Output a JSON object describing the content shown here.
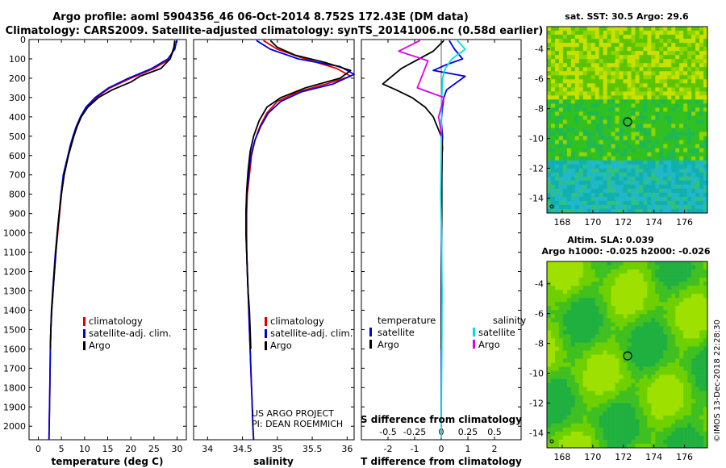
{
  "title": {
    "line1": "Argo profile: aoml 5904356_46 06-Oct-2014 8.752S 172.43E (DM data)",
    "line2": "Climatology: CARS2009. Satellite-adjusted climatology: synTS_20141006.nc (0.58d earlier)"
  },
  "colors": {
    "argo": "#000000",
    "climatology": "#e00000",
    "satellite": "#0000e0",
    "salinity_satellite": "#00e0e0",
    "salinity_argo": "#e000e0"
  },
  "depth_axis": {
    "ticks": [
      "0",
      "100",
      "200",
      "300",
      "400",
      "500",
      "600",
      "700",
      "800",
      "900",
      "1000",
      "1100",
      "1200",
      "1300",
      "1400",
      "1500",
      "1600",
      "1700",
      "1800",
      "1900",
      "2000"
    ]
  },
  "chart_data": [
    {
      "type": "line",
      "name": "temperature",
      "xlabel": "temperature (deg C)",
      "xlim": [
        -2,
        32
      ],
      "ylim": [
        2070,
        0
      ],
      "xticks": [
        "0",
        "5",
        "10",
        "15",
        "20",
        "25",
        "30"
      ],
      "legend": {
        "position": "lower-middle",
        "items": [
          "climatology",
          "satellite-adj. clim.",
          "Argo"
        ]
      },
      "series": [
        {
          "name": "climatology",
          "color_key": "climatology",
          "x": [
            29.5,
            29.3,
            28.5,
            25,
            20,
            15.5,
            12.5,
            10.5,
            9.2,
            8.3,
            7.6,
            7,
            6.5,
            6,
            5.5,
            5,
            4.6,
            4.2,
            3.8,
            3.5,
            3.2,
            2.9,
            2.7,
            2.6,
            2.5,
            2.4,
            2.3
          ],
          "y": [
            5,
            50,
            100,
            150,
            200,
            250,
            300,
            350,
            400,
            450,
            500,
            550,
            600,
            650,
            700,
            800,
            900,
            1000,
            1100,
            1200,
            1300,
            1400,
            1500,
            1600,
            1800,
            1950,
            2070
          ]
        },
        {
          "name": "satellite-adj. clim.",
          "color_key": "satellite",
          "x": [
            29.9,
            29.5,
            28,
            24.5,
            19.5,
            15.2,
            12.3,
            10.3,
            9.1,
            8.2,
            7.5,
            6.9,
            6.4,
            5.9,
            5.4,
            4.9,
            4.5,
            4.1,
            3.7,
            3.4,
            3.1,
            2.85,
            2.7,
            2.6,
            2.5,
            2.4,
            2.3
          ],
          "y": [
            5,
            50,
            100,
            150,
            200,
            250,
            300,
            350,
            400,
            450,
            500,
            550,
            600,
            650,
            700,
            800,
            900,
            1000,
            1100,
            1200,
            1300,
            1400,
            1500,
            1600,
            1800,
            1950,
            2070
          ]
        },
        {
          "name": "Argo",
          "color_key": "argo",
          "x": [
            29.5,
            29.3,
            28.5,
            26.5,
            22,
            20,
            16,
            13,
            10.7,
            9.3,
            8.4,
            7.7,
            7.1,
            6.5,
            5.6,
            5,
            4.5,
            4.1,
            3.8,
            3.5,
            3.2,
            2.9,
            2.7,
            2.6
          ],
          "y": [
            5,
            40,
            100,
            150,
            190,
            220,
            260,
            300,
            350,
            400,
            450,
            500,
            550,
            600,
            700,
            800,
            900,
            1000,
            1100,
            1200,
            1300,
            1400,
            1500,
            1600
          ]
        }
      ]
    },
    {
      "type": "line",
      "name": "salinity",
      "xlabel": "salinity",
      "xlim": [
        33.8,
        36.1
      ],
      "ylim": [
        2070,
        0
      ],
      "xticks": [
        "34",
        "34.5",
        "35",
        "35.5",
        "36"
      ],
      "legend": {
        "position": "lower-right",
        "items": [
          "climatology",
          "satellite-adj. clim.",
          "Argo"
        ]
      },
      "annotation": [
        "US ARGO PROJECT",
        "PI: DEAN ROEMMICH"
      ],
      "series": [
        {
          "name": "climatology",
          "color_key": "climatology",
          "x": [
            34.8,
            35,
            35.4,
            35.85,
            36.05,
            35.7,
            35.3,
            35,
            34.85,
            34.75,
            34.68,
            34.63,
            34.6,
            34.57,
            34.56,
            34.56,
            34.56,
            34.57,
            34.58,
            34.59,
            34.6,
            34.61,
            34.62,
            34.63,
            34.64,
            34.65,
            34.66
          ],
          "y": [
            5,
            50,
            100,
            150,
            190,
            230,
            270,
            320,
            380,
            450,
            520,
            600,
            700,
            800,
            900,
            1000,
            1100,
            1200,
            1300,
            1400,
            1500,
            1600,
            1700,
            1800,
            1900,
            2000,
            2070
          ]
        },
        {
          "name": "satellite-adj. clim.",
          "color_key": "satellite",
          "x": [
            34.7,
            34.9,
            35.3,
            35.9,
            36.1,
            35.8,
            35.35,
            35.05,
            34.87,
            34.76,
            34.68,
            34.62,
            34.59,
            34.56,
            34.55,
            34.55,
            34.56,
            34.57,
            34.58,
            34.59,
            34.6,
            34.61,
            34.62,
            34.63,
            34.64,
            34.65,
            34.66
          ],
          "y": [
            5,
            50,
            100,
            140,
            180,
            230,
            270,
            320,
            380,
            450,
            520,
            600,
            700,
            800,
            900,
            1000,
            1100,
            1200,
            1300,
            1400,
            1500,
            1600,
            1700,
            1800,
            1900,
            2000,
            2070
          ]
        },
        {
          "name": "Argo",
          "color_key": "argo",
          "x": [
            34.9,
            35,
            35.25,
            35.7,
            36.05,
            35.9,
            35.4,
            35.05,
            34.85,
            34.74,
            34.66,
            34.61,
            34.58,
            34.56,
            34.55,
            34.55,
            34.56,
            34.57,
            34.58,
            34.6,
            34.61,
            34.62
          ],
          "y": [
            5,
            40,
            80,
            120,
            160,
            200,
            250,
            300,
            350,
            420,
            500,
            580,
            680,
            780,
            900,
            1000,
            1100,
            1200,
            1300,
            1400,
            1500,
            1600
          ]
        }
      ]
    },
    {
      "type": "line",
      "name": "difference-from-climatology",
      "xlabel": "T difference from climatology",
      "xlim": [
        -3,
        3
      ],
      "ylim": [
        2070,
        0
      ],
      "xticks": [
        "-2",
        "-1",
        "0",
        "1",
        "2"
      ],
      "top_axis": {
        "label": "S difference from climatology",
        "ticks": [
          "-0.5",
          "-0.25",
          "0",
          "0.25",
          "0.5"
        ]
      },
      "legend": {
        "temperature": {
          "title": "temperature",
          "items": [
            "satellite",
            "Argo"
          ]
        },
        "salinity": {
          "title": "salinity",
          "items": [
            "satellite",
            "Argo"
          ]
        }
      },
      "series": [
        {
          "name": "temperature satellite",
          "color_key": "satellite",
          "x": [
            0.3,
            0.5,
            0.8,
            0.2,
            -0.3,
            0.9,
            0.5,
            0.2,
            0.1,
            0.05,
            0,
            0.05,
            0.03,
            0.02,
            0.01,
            0,
            0,
            0
          ],
          "y": [
            5,
            50,
            100,
            130,
            160,
            190,
            230,
            260,
            300,
            350,
            420,
            500,
            600,
            700,
            900,
            1200,
            1600,
            1960
          ]
        },
        {
          "name": "temperature Argo",
          "color_key": "argo",
          "x": [
            0.1,
            -0.3,
            -1.5,
            -2.2,
            -1.7,
            -1.1,
            -0.6,
            -0.3,
            -0.15,
            0,
            0.05,
            0.03,
            0.02,
            0.02,
            0.01,
            0.01,
            0
          ],
          "y": [
            5,
            60,
            150,
            230,
            260,
            300,
            350,
            400,
            450,
            500,
            560,
            600,
            700,
            900,
            1100,
            1300,
            1600
          ]
        },
        {
          "name": "salinity satellite",
          "color_key": "salinity_satellite",
          "x": [
            0.6,
            0.9,
            0.4,
            0.15,
            0.05,
            0.02,
            0.01,
            0,
            -0.02,
            0.01,
            0.03,
            0.02,
            0.01,
            0
          ],
          "y": [
            5,
            50,
            100,
            150,
            200,
            300,
            400,
            600,
            800,
            1000,
            1300,
            1600,
            1800,
            2060
          ]
        },
        {
          "name": "salinity Argo",
          "color_key": "salinity_argo",
          "x": [
            -0.8,
            -1.6,
            -0.5,
            -0.9,
            0.1,
            -0.1,
            0,
            0
          ],
          "y": [
            5,
            60,
            110,
            250,
            300,
            400,
            480,
            500
          ]
        }
      ]
    }
  ],
  "sst_map": {
    "title": "sat. SST: 30.5 Argo: 29.6",
    "lon_ticks": [
      "168",
      "170",
      "172",
      "174",
      "176"
    ],
    "lat_ticks": [
      "-4",
      "-6",
      "-8",
      "-10",
      "-12",
      "-14"
    ]
  },
  "sla_map": {
    "title_line1": "Altim. SLA: 0.039",
    "title_line2": "Argo h1000: -0.025 h2000: -0.026",
    "lon_ticks": [
      "168",
      "170",
      "172",
      "174",
      "176"
    ],
    "lat_ticks": [
      "-4",
      "-6",
      "-8",
      "-10",
      "-12",
      "-14"
    ]
  },
  "credit": "©IMOS 13-Dec-2018 22:28:30"
}
